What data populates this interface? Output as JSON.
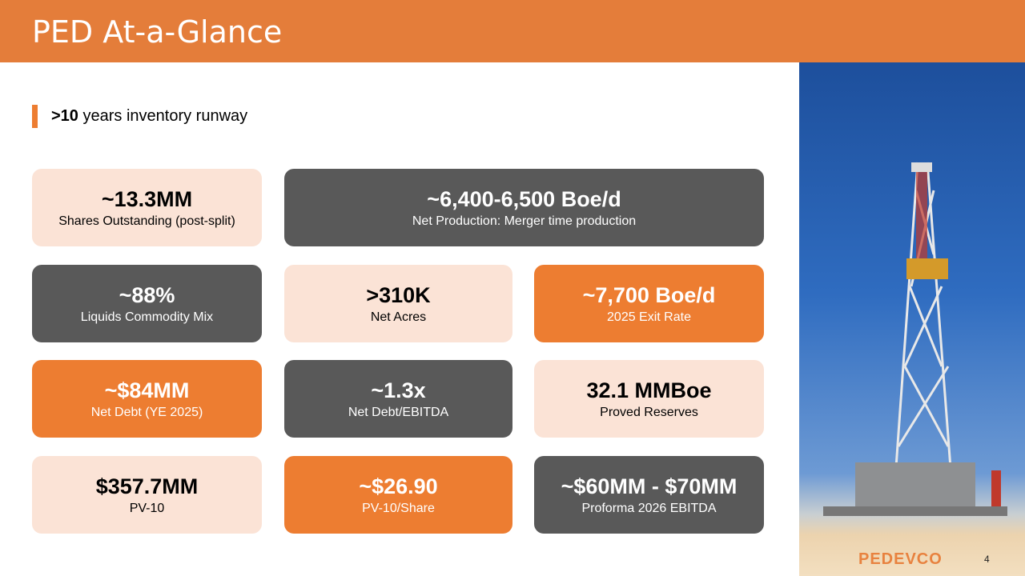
{
  "header": {
    "title": "PED At-a-Glance"
  },
  "subtitle": {
    "bold": ">10",
    "rest": " years inventory runway"
  },
  "cards": [
    {
      "value": "~13.3MM",
      "label": "Shares Outstanding (post-split)"
    },
    {
      "value": "~6,400-6,500 Boe/d",
      "label": "Net Production: Merger time production"
    },
    {
      "value": "~88%",
      "label": "Liquids Commodity Mix"
    },
    {
      "value": ">310K",
      "label": "Net Acres"
    },
    {
      "value": "~7,700 Boe/d",
      "label": "2025 Exit Rate"
    },
    {
      "value": "~$84MM",
      "label": "Net Debt (YE 2025)"
    },
    {
      "value": "~1.3x",
      "label": "Net Debt/EBITDA"
    },
    {
      "value": "32.1 MMBoe",
      "label": "Proved Reserves"
    },
    {
      "value": "$357.7MM",
      "label": "PV-10"
    },
    {
      "value": "~$26.90",
      "label": "PV-10/Share"
    },
    {
      "value": "~$60MM - $70MM",
      "label": "Proforma 2026 EBITDA"
    }
  ],
  "footer": {
    "logo": "PEDEVCO",
    "page_number": "4"
  },
  "colors": {
    "header": "#E47D3A",
    "light": "#FBE3D6",
    "dark": "#595959",
    "orange": "#ED7D31"
  }
}
